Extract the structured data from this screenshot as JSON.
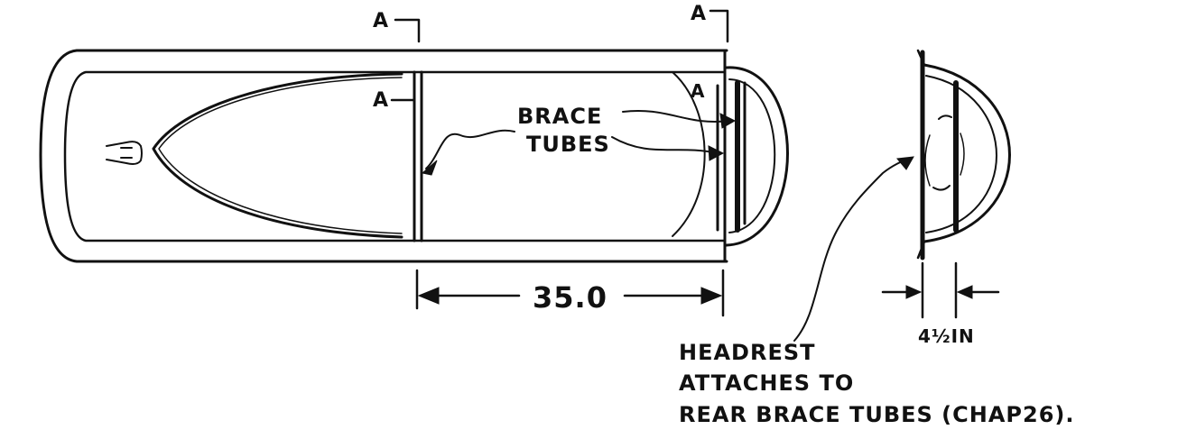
{
  "labels": {
    "section_a_top_left": "A",
    "section_a_top_right": "A",
    "section_a_inner": "A",
    "section_a_curve": "A",
    "brace": "BRACE",
    "tubes": "TUBES",
    "dimension_length": "35.0",
    "dimension_depth": "4½IN",
    "note_line1": "HEADREST",
    "note_line2": "ATTACHES TO",
    "note_line3": "REAR BRACE TUBES (CHAP26)."
  },
  "colors": {
    "ink": "#111111",
    "paper": "#ffffff"
  }
}
